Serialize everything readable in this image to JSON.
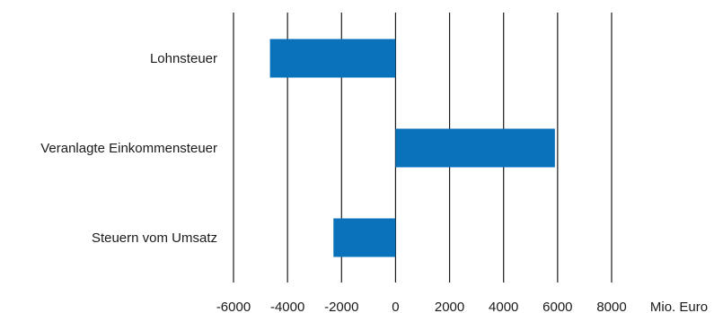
{
  "chart_data": {
    "type": "bar",
    "orientation": "horizontal",
    "categories": [
      "Lohnsteuer",
      "Veranlagte Einkommensteuer",
      "Steuern vom Umsatz"
    ],
    "values": [
      -4650,
      5900,
      -2300
    ],
    "x_ticks": [
      -6000,
      -4000,
      -2000,
      0,
      2000,
      4000,
      6000,
      8000
    ],
    "x_tick_labels": [
      "-6000",
      "-4000",
      "-2000",
      "0",
      "2000",
      "4000",
      "6000",
      "8000"
    ],
    "xlim": [
      -6000,
      8000
    ],
    "x_unit_label": "Mio. Euro",
    "grid": "vertical",
    "bar_color": "#0a72ba",
    "title": ""
  }
}
